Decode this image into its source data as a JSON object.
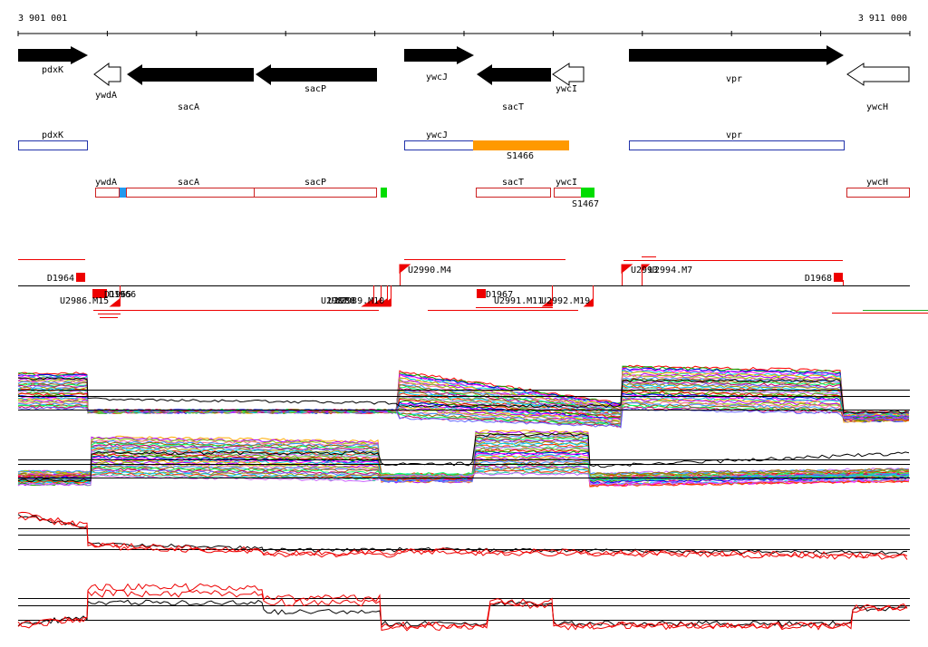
{
  "ruler": {
    "start": "3 901 001",
    "end": "3 911 000"
  },
  "genes": [
    {
      "name": "pdxK",
      "strand": "+",
      "filled": true
    },
    {
      "name": "ywdA",
      "strand": "-",
      "filled": false
    },
    {
      "name": "sacA",
      "strand": "-",
      "filled": true
    },
    {
      "name": "sacP",
      "strand": "-",
      "filled": true
    },
    {
      "name": "ywcJ",
      "strand": "+",
      "filled": true
    },
    {
      "name": "sacT",
      "strand": "-",
      "filled": true
    },
    {
      "name": "ywcI",
      "strand": "-",
      "filled": false
    },
    {
      "name": "vpr",
      "strand": "+",
      "filled": true
    },
    {
      "name": "ywcH",
      "strand": "-",
      "filled": false
    }
  ],
  "plus_boxes": [
    {
      "name": "pdxK"
    },
    {
      "name": "ywcJ"
    },
    {
      "name": "vpr"
    }
  ],
  "plus_feature": {
    "name": "S1466",
    "color": "#ff9900"
  },
  "minus_boxes": [
    {
      "name": "ywdA"
    },
    {
      "name": "sacA"
    },
    {
      "name": "sacP"
    },
    {
      "name": "sacT"
    },
    {
      "name": "ywcI"
    },
    {
      "name": "ywcH"
    }
  ],
  "minus_feature": {
    "name": "S1467",
    "color": "#00dd00"
  },
  "marker_blue": {
    "color": "#2299ee"
  },
  "upper_labels": [
    "D1964",
    "U2990.M4",
    "U2993",
    "U2994.M7",
    "D1968"
  ],
  "lower_labels": [
    "U2986.M15",
    "D1965",
    "D1966",
    "U2987",
    "U2988",
    "U2989.M10",
    "D1967",
    "U2991.M11",
    "U2992.M19"
  ],
  "colors": {
    "gene": "#000000",
    "box_plus": "#2233aa",
    "box_minus": "#cc2222",
    "tss": "#ee0000",
    "trace_red": "#ee0000",
    "trace_black": "#000000"
  }
}
